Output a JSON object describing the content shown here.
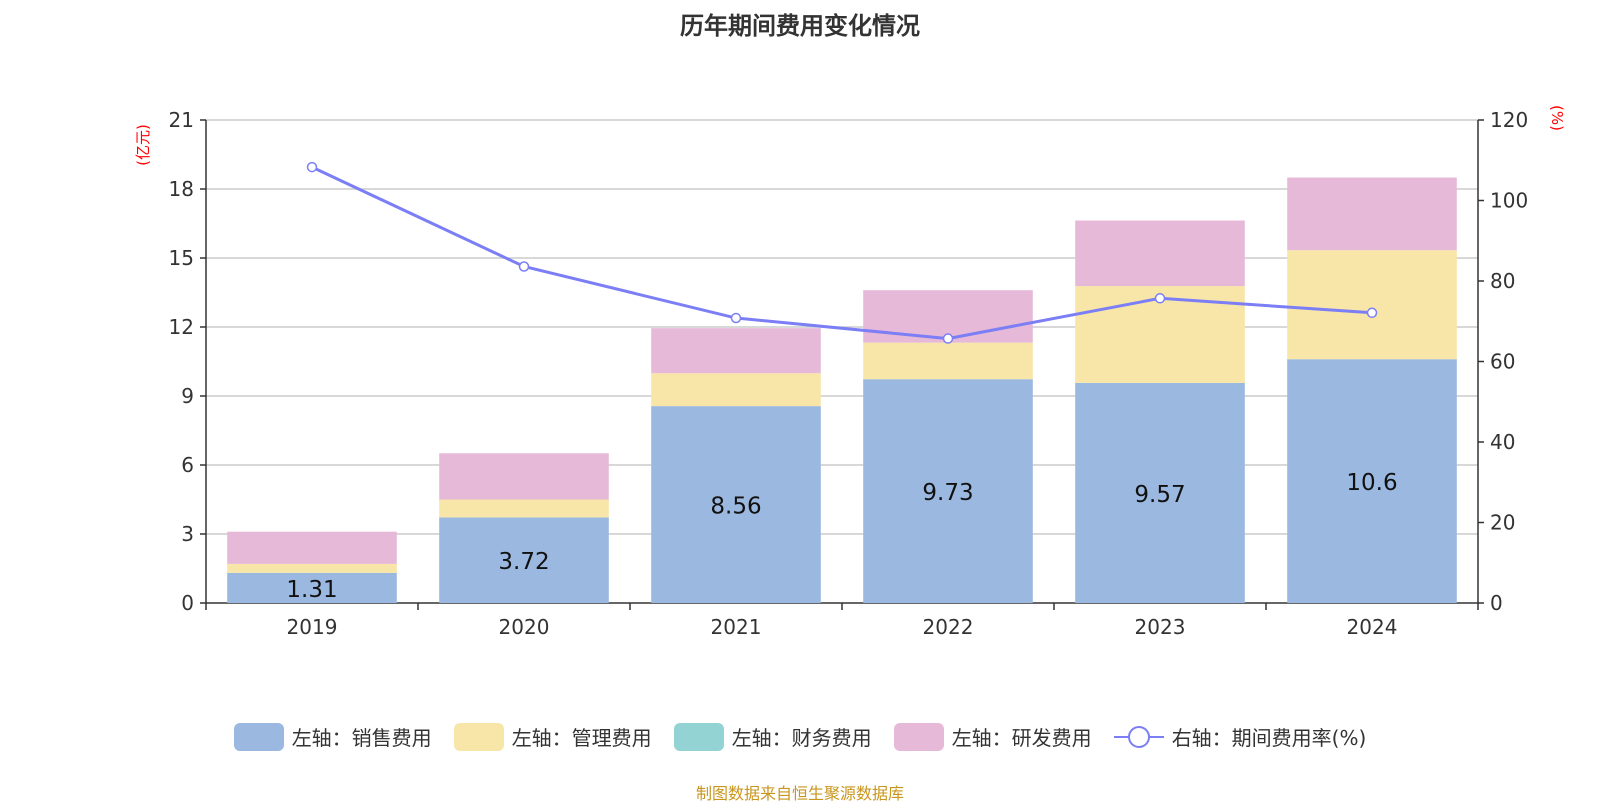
{
  "title": "历年期间费用变化情况",
  "source": "制图数据来自恒生聚源数据库",
  "chart_data": {
    "type": "bar",
    "stacked": true,
    "categories": [
      "2019",
      "2020",
      "2021",
      "2022",
      "2023",
      "2024"
    ],
    "left_axis": {
      "unit_label": "(亿元)",
      "range": [
        0,
        21
      ],
      "ticks": [
        0,
        3,
        6,
        9,
        12,
        15,
        18,
        21
      ]
    },
    "right_axis": {
      "unit_label": "(%)",
      "range": [
        0,
        120
      ],
      "ticks": [
        0,
        20,
        40,
        60,
        80,
        100,
        120
      ]
    },
    "grid": true,
    "legend_position": "bottom",
    "series": [
      {
        "name": "左轴：销售费用",
        "axis": "left",
        "color": "#9bb8e0",
        "values": [
          1.31,
          3.72,
          8.56,
          9.73,
          9.57,
          10.6
        ],
        "labels": [
          "1.31",
          "3.72",
          "8.56",
          "9.73",
          "9.57",
          "10.6"
        ]
      },
      {
        "name": "左轴：管理费用",
        "axis": "left",
        "color": "#f7e6a8",
        "values": [
          0.39,
          0.78,
          1.43,
          1.59,
          4.21,
          4.74
        ]
      },
      {
        "name": "左轴：财务费用",
        "axis": "left",
        "color": "#93d3d3",
        "values": [
          0,
          0,
          0,
          0,
          0,
          0
        ]
      },
      {
        "name": "左轴：研发费用",
        "axis": "left",
        "color": "#e7b9d8",
        "values": [
          1.4,
          2.01,
          1.96,
          2.28,
          2.85,
          3.16
        ]
      },
      {
        "name": "右轴：期间费用率(%)",
        "axis": "right",
        "type": "line",
        "color": "#7b7ef5",
        "values": [
          108.3,
          83.6,
          70.8,
          65.7,
          75.7,
          72.1
        ]
      }
    ]
  }
}
